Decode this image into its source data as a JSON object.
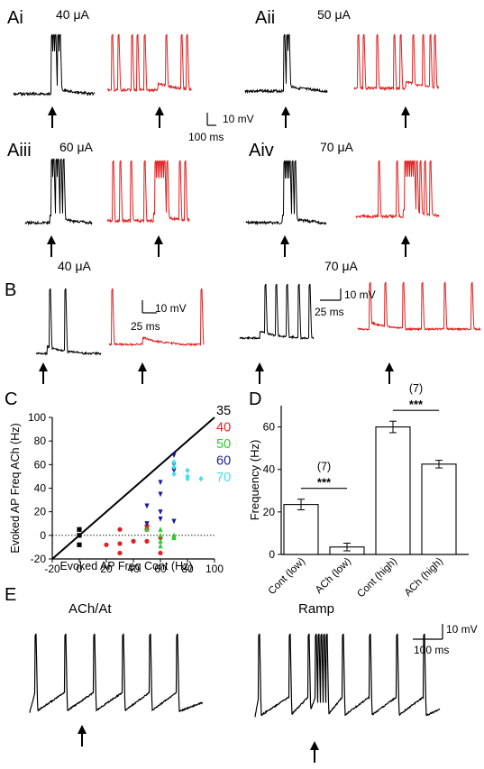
{
  "panels": {
    "Ai": {
      "label": "Ai",
      "current": "40 μA"
    },
    "Aii": {
      "label": "Aii",
      "current": "50 μA"
    },
    "Aiii": {
      "label": "Aiii",
      "current": "60 μA"
    },
    "Aiv": {
      "label": "Aiv",
      "current": "70 μA"
    },
    "B": {
      "label": "B",
      "current_left": "40 μA",
      "current_right": "70 μA"
    },
    "C": {
      "label": "C"
    },
    "D": {
      "label": "D"
    },
    "E": {
      "label": "E",
      "title_left": "ACh/At",
      "title_right": "Ramp"
    }
  },
  "scalebars": {
    "A": {
      "v": "10 mV",
      "t": "100 ms"
    },
    "B_left": {
      "v": "10 mV",
      "t": "25 ms"
    },
    "B_right": {
      "v": "10 mV",
      "t": "25 ms"
    },
    "E": {
      "v": "10 mV",
      "t": "100 ms"
    }
  },
  "colors": {
    "control": "#000000",
    "ach": "#e0201f"
  },
  "chart_data": [
    {
      "type": "scatter",
      "xlabel": "Evoked AP Freq Cont (Hz)",
      "ylabel": "Evoked AP Freq ACh (Hz)",
      "xlim": [
        -20,
        100
      ],
      "ylim": [
        -20,
        100
      ],
      "xticks": [
        "-20",
        "0",
        "20",
        "40",
        "60",
        "80",
        "100"
      ],
      "yticks": [
        "-20",
        "0",
        "20",
        "40",
        "60",
        "80",
        "100"
      ],
      "unity_line": true,
      "zero_dotted_line": true,
      "legend_position": "top-right",
      "series": [
        {
          "name": "35",
          "color": "#000000",
          "marker": "square",
          "points": [
            [
              0,
              5
            ],
            [
              0,
              0
            ],
            [
              0,
              -8
            ]
          ]
        },
        {
          "name": "40",
          "color": "#e0201f",
          "marker": "circle",
          "points": [
            [
              20,
              -8
            ],
            [
              30,
              5
            ],
            [
              30,
              -7
            ],
            [
              30,
              -15
            ],
            [
              40,
              -5
            ],
            [
              50,
              5
            ],
            [
              50,
              8
            ],
            [
              50,
              -5
            ],
            [
              60,
              -2
            ],
            [
              60,
              -15
            ]
          ]
        },
        {
          "name": "50",
          "color": "#2ecc2e",
          "marker": "triangle-up",
          "points": [
            [
              50,
              5
            ],
            [
              60,
              -5
            ],
            [
              60,
              -9
            ],
            [
              60,
              5
            ],
            [
              70,
              -1
            ],
            [
              70,
              0
            ],
            [
              70,
              -2
            ],
            [
              60,
              0
            ]
          ]
        },
        {
          "name": "60",
          "color": "#1a1aa8",
          "marker": "triangle-down",
          "points": [
            [
              50,
              25
            ],
            [
              50,
              10
            ],
            [
              60,
              45
            ],
            [
              60,
              35
            ],
            [
              60,
              20
            ],
            [
              60,
              14
            ],
            [
              70,
              68
            ],
            [
              70,
              60
            ],
            [
              70,
              55
            ],
            [
              70,
              12
            ]
          ]
        },
        {
          "name": "70",
          "color": "#40e0f0",
          "marker": "diamond",
          "points": [
            [
              70,
              62
            ],
            [
              70,
              58
            ],
            [
              80,
              55
            ],
            [
              80,
              50
            ],
            [
              80,
              48
            ],
            [
              90,
              48
            ],
            [
              70,
              52
            ]
          ]
        }
      ]
    },
    {
      "type": "bar",
      "ylabel": "Frequency (Hz)",
      "ylim": [
        0,
        70
      ],
      "yticks": [
        "0",
        "20",
        "40",
        "60"
      ],
      "categories": [
        "Cont (low)",
        "ACh (low)",
        "Cont (high)",
        "ACh (high)"
      ],
      "values": [
        23.5,
        3.5,
        60,
        42.5
      ],
      "errors": [
        2.5,
        1.8,
        2.7,
        1.8
      ],
      "annotations": [
        {
          "pair": [
            0,
            1
          ],
          "stars": "***",
          "n": "(7)"
        },
        {
          "pair": [
            2,
            3
          ],
          "stars": "***",
          "n": "(7)"
        }
      ]
    }
  ]
}
